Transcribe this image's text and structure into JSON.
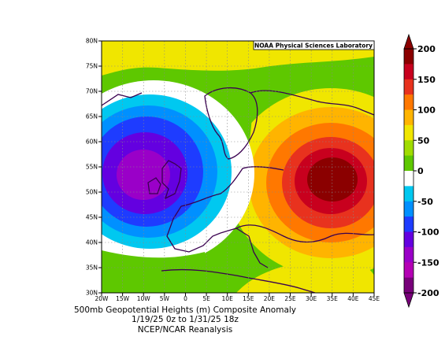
{
  "credit": "NOAA Physical Sciences Laboratory",
  "caption": {
    "line1": "500mb Geopotential Heights (m)    Composite Anomaly",
    "line2": "1/19/25 0z  to 1/31/25 18z",
    "line3": "NCEP/NCAR Reanalysis"
  },
  "map": {
    "lat_labels": [
      "80N",
      "75N",
      "70N",
      "65N",
      "60N",
      "55N",
      "50N",
      "45N",
      "40N",
      "35N",
      "30N"
    ],
    "lon_labels": [
      "20W",
      "15W",
      "10W",
      "5W",
      "0",
      "5E",
      "10E",
      "15E",
      "20E",
      "25E",
      "30E",
      "35E",
      "40E",
      "45E"
    ],
    "lat_range": [
      30,
      80
    ],
    "lon_range": [
      -20,
      45
    ],
    "grid": true
  },
  "anomaly_centers": [
    {
      "label": "low",
      "lon": -9,
      "lat": 52,
      "value": -175
    },
    {
      "label": "high",
      "lon": 33,
      "lat": 51,
      "value": 175
    }
  ],
  "colorbar": {
    "tick_labels": [
      "200",
      "150",
      "100",
      "50",
      "0",
      "-50",
      "-100",
      "-150",
      "-200"
    ],
    "levels": [
      {
        "value": 187,
        "color": "#8b0000"
      },
      {
        "value": 162,
        "color": "#c8001e"
      },
      {
        "value": 137,
        "color": "#e8321e"
      },
      {
        "value": 112,
        "color": "#ff7800"
      },
      {
        "value": 87,
        "color": "#ffb400"
      },
      {
        "value": 62,
        "color": "#f0e600"
      },
      {
        "value": 37,
        "color": "#a0dc00"
      },
      {
        "value": 12,
        "color": "#5ec800"
      },
      {
        "value": -12,
        "color": "#ffffff"
      },
      {
        "value": -37,
        "color": "#00c8f0"
      },
      {
        "value": -62,
        "color": "#0090ff"
      },
      {
        "value": -87,
        "color": "#1e3cff"
      },
      {
        "value": -112,
        "color": "#6400e0"
      },
      {
        "value": -137,
        "color": "#9a00c8"
      },
      {
        "value": -162,
        "color": "#b400b4"
      },
      {
        "value": -187,
        "color": "#78007a"
      }
    ]
  }
}
